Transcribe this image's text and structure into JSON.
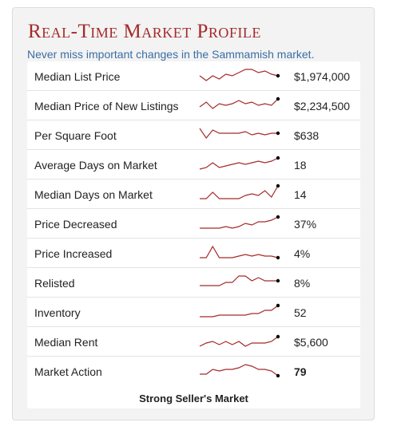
{
  "header": {
    "title": "Real-Time Market Profile",
    "subtitle": "Never miss important changes in the Sammamish market."
  },
  "colors": {
    "title": "#a52a2a",
    "subtitle": "#3a6ea5",
    "sparkline": "#a52a2a",
    "endpoint": "#000000"
  },
  "metrics": [
    {
      "label": "Median List Price",
      "value": "$1,974,000",
      "trend": [
        5,
        2,
        5,
        3,
        6,
        5,
        7,
        9,
        9,
        7,
        8,
        6,
        5
      ]
    },
    {
      "label": "Median Price of New Listings",
      "value": "$2,234,500",
      "trend": [
        4,
        7,
        3,
        6,
        5,
        6,
        8,
        6,
        7,
        5,
        6,
        5,
        9
      ]
    },
    {
      "label": "Per Square Foot",
      "value": "$638",
      "trend": [
        9,
        3,
        8,
        6,
        6,
        6,
        6,
        7,
        5,
        6,
        5,
        6,
        6
      ]
    },
    {
      "label": "Average Days on Market",
      "value": "18",
      "trend": [
        2,
        3,
        6,
        3,
        4,
        5,
        6,
        5,
        6,
        7,
        6,
        7,
        9
      ]
    },
    {
      "label": "Median Days on Market",
      "value": "14",
      "trend": [
        2,
        2,
        6,
        2,
        2,
        2,
        2,
        4,
        5,
        4,
        7,
        3,
        10
      ]
    },
    {
      "label": "Price Decreased",
      "value": "37%",
      "trend": [
        2,
        2,
        2,
        2,
        3,
        2,
        3,
        5,
        4,
        6,
        6,
        7,
        9
      ]
    },
    {
      "label": "Price Increased",
      "value": "4%",
      "trend": [
        2,
        2,
        9,
        2,
        2,
        2,
        3,
        4,
        3,
        4,
        3,
        3,
        2
      ]
    },
    {
      "label": "Relisted",
      "value": "8%",
      "trend": [
        3,
        3,
        3,
        3,
        5,
        5,
        9,
        9,
        6,
        8,
        6,
        6,
        6
      ]
    },
    {
      "label": "Inventory",
      "value": "52",
      "trend": [
        2,
        2,
        2,
        3,
        3,
        3,
        3,
        3,
        4,
        4,
        6,
        6,
        9
      ]
    },
    {
      "label": "Median Rent",
      "value": "$5,600",
      "trend": [
        2,
        4,
        5,
        3,
        5,
        3,
        5,
        2,
        4,
        4,
        4,
        5,
        8
      ]
    },
    {
      "label": "Market Action",
      "value": "79",
      "trend": [
        3,
        3,
        6,
        5,
        6,
        6,
        7,
        9,
        8,
        6,
        6,
        5,
        2
      ]
    }
  ],
  "footer": {
    "market_label": "Strong Seller's Market"
  }
}
